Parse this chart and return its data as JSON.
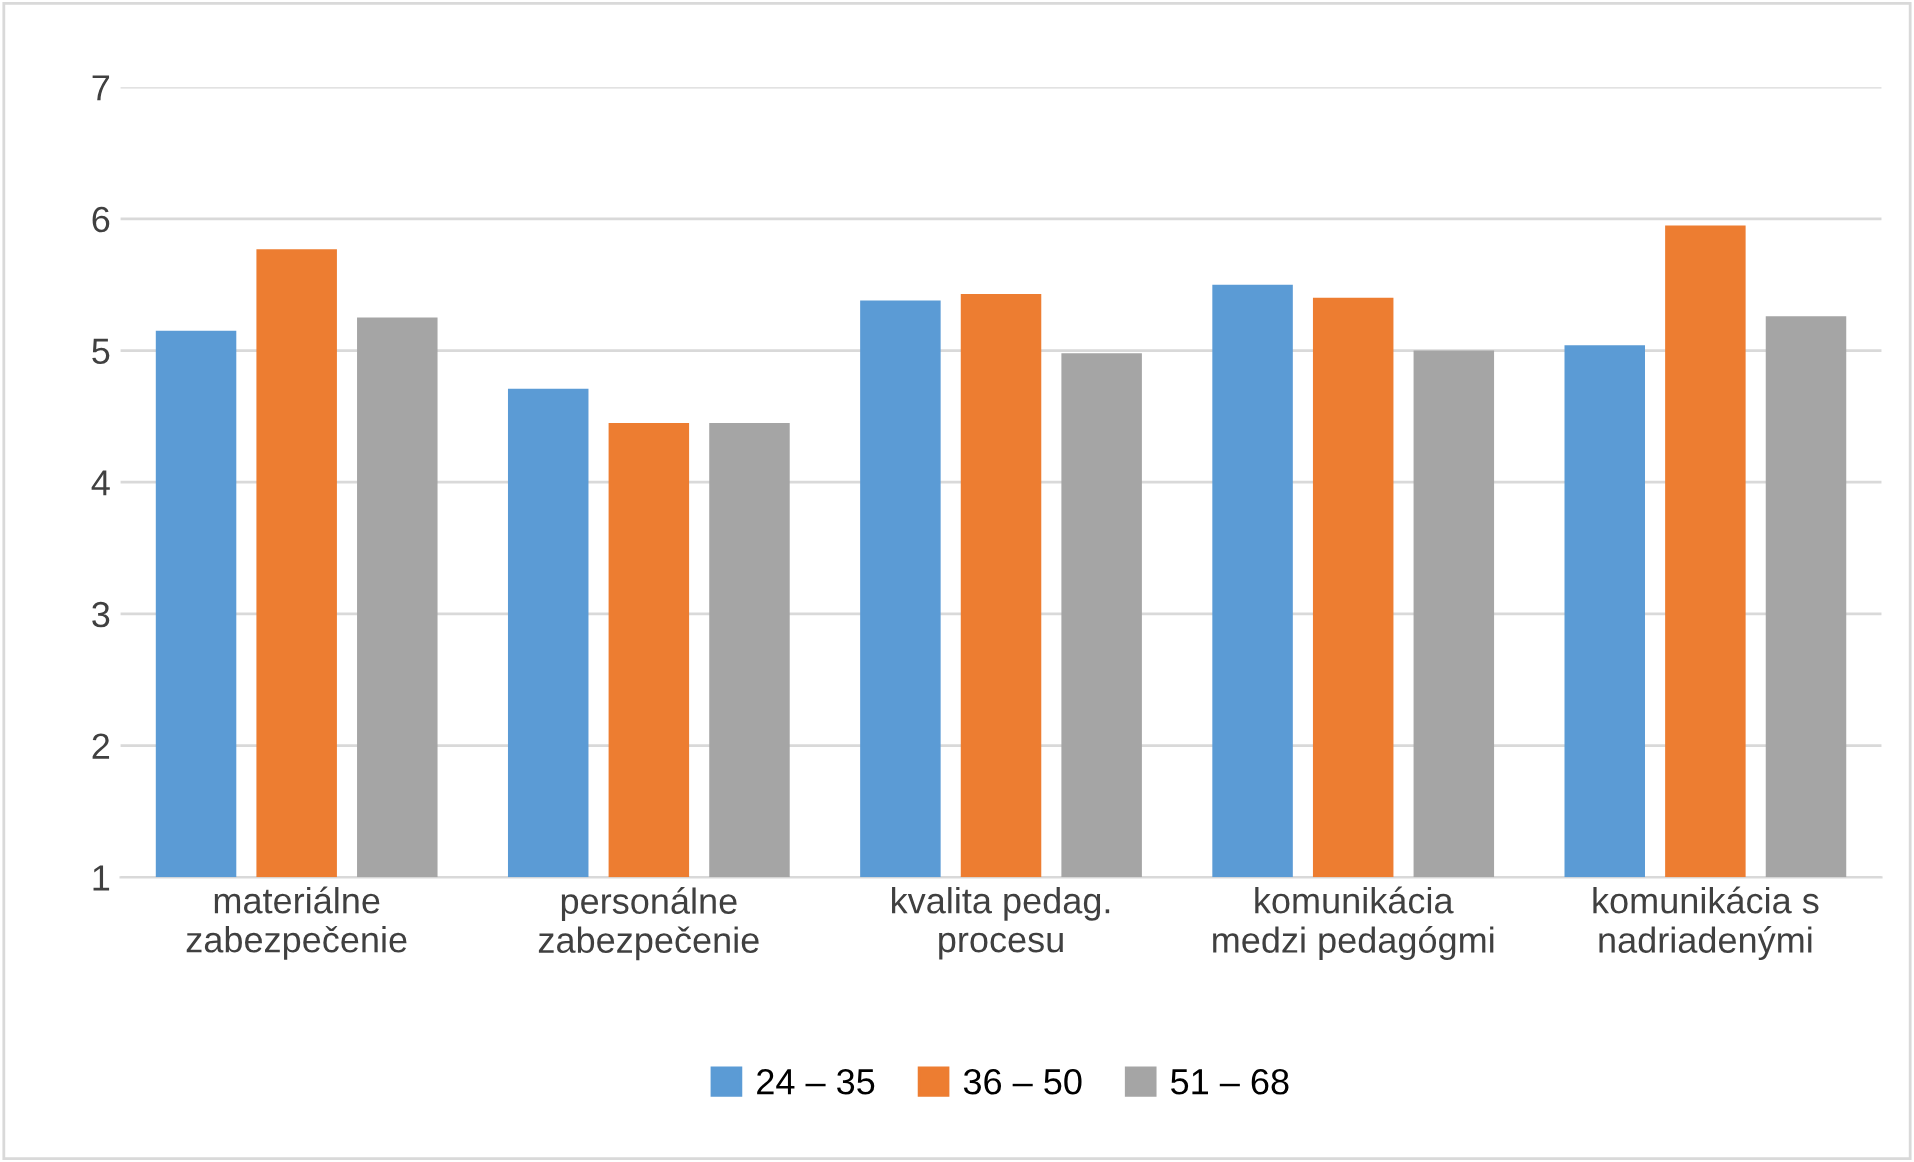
{
  "chart_data": {
    "type": "bar",
    "categories": [
      "materiálne\nzabezpečenie",
      "personálne\nzabezpečenie",
      "kvalita pedag.\nprocesu",
      "komunikácia\nmedzi pedagógmi",
      "komunikácia s\nnadriadenými"
    ],
    "series": [
      {
        "name": "24 – 35",
        "color": "#5b9bd5",
        "values": [
          5.15,
          4.71,
          5.38,
          5.5,
          5.04
        ]
      },
      {
        "name": "36 – 50",
        "color": "#ed7d31",
        "values": [
          5.77,
          4.45,
          5.43,
          5.4,
          5.95
        ]
      },
      {
        "name": "51 – 68",
        "color": "#a5a5a5",
        "values": [
          5.25,
          4.45,
          4.98,
          5.0,
          5.26
        ]
      }
    ],
    "ylim": [
      1,
      7
    ],
    "yticks": [
      1,
      2,
      3,
      4,
      5,
      6,
      7
    ],
    "grid": "y",
    "legend": "bottom"
  }
}
